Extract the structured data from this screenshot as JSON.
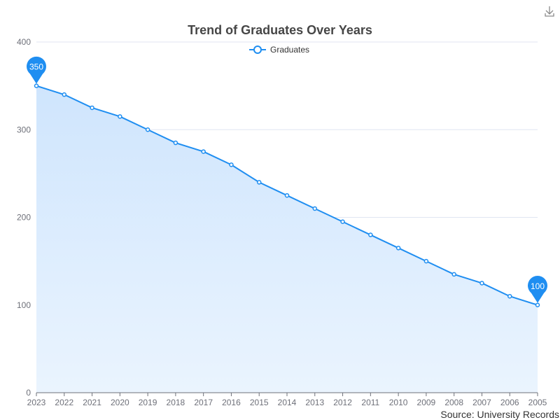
{
  "toolbox": {
    "download_icon": "download-icon"
  },
  "chart_data": {
    "type": "area",
    "title": "Trend of Graduates Over Years",
    "x": [
      "2023",
      "2022",
      "2021",
      "2020",
      "2019",
      "2018",
      "2017",
      "2016",
      "2015",
      "2014",
      "2013",
      "2012",
      "2011",
      "2010",
      "2009",
      "2008",
      "2007",
      "2006",
      "2005"
    ],
    "series": [
      {
        "name": "Graduates",
        "values": [
          350,
          340,
          325,
          315,
          300,
          285,
          275,
          260,
          240,
          225,
          210,
          195,
          180,
          165,
          150,
          135,
          125,
          110,
          100
        ]
      }
    ],
    "ylim": [
      0,
      400
    ],
    "yticks": [
      0,
      100,
      200,
      300,
      400
    ],
    "grid": true,
    "legend_position": "top-center",
    "mark_points": [
      {
        "label": "350",
        "x": "2023",
        "value": 350
      },
      {
        "label": "100",
        "x": "2005",
        "value": 100
      }
    ],
    "colors": {
      "line": "#1f8ef1",
      "area_top": "#cfe5fd",
      "area_bottom": "#eaf4fe",
      "grid": "#e0e6f1"
    },
    "source": "Source: University Records"
  }
}
